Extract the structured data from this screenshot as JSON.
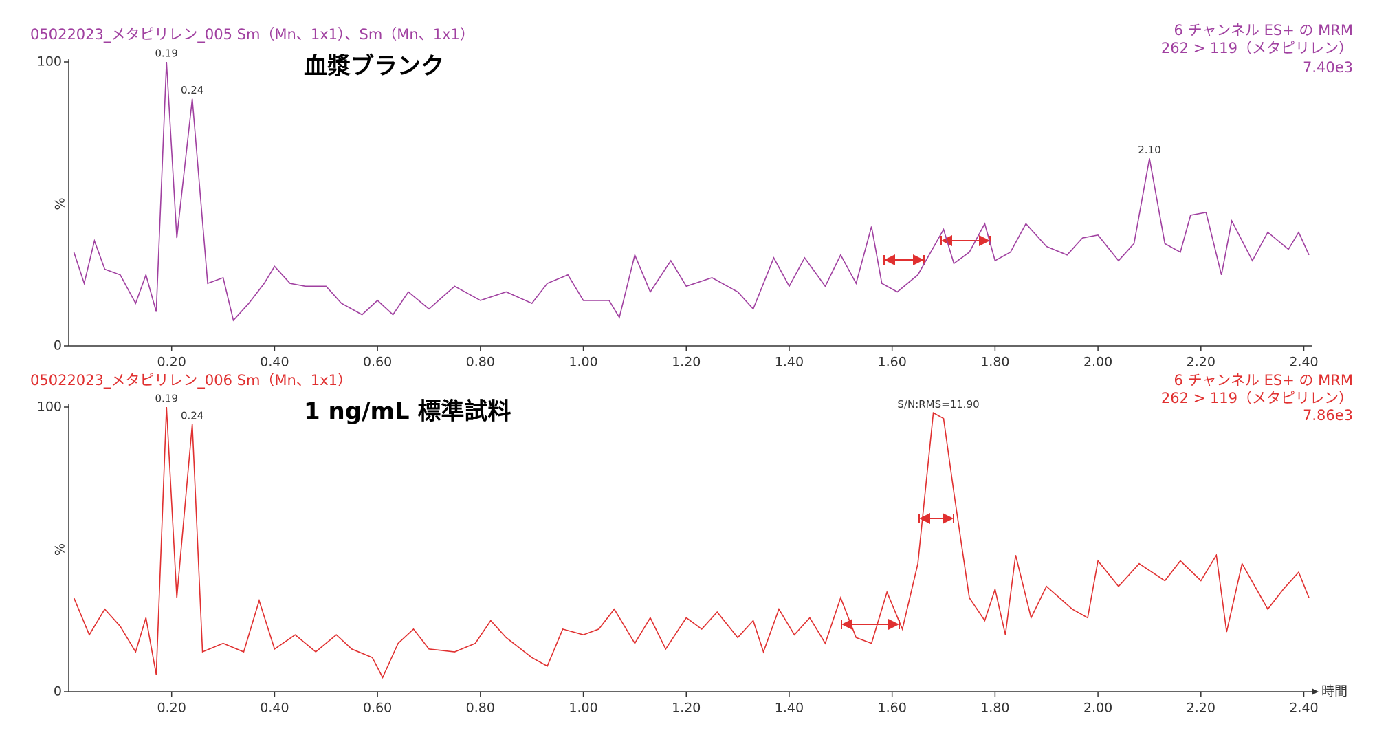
{
  "chart_data": [
    {
      "type": "line",
      "title": "05022023_メタピリレン_005 Sm（Mn、1x1）、Sm（Mn、1x1）",
      "header_right": [
        "6 チャンネル ES+ の MRM",
        "262 > 119（メタピリレン）",
        "7.40e3"
      ],
      "label": "血漿ブランク",
      "y_label": "%",
      "color": "#a040a0",
      "x": [
        0.01,
        0.03,
        0.05,
        0.07,
        0.1,
        0.13,
        0.15,
        0.17,
        0.19,
        0.21,
        0.24,
        0.27,
        0.3,
        0.32,
        0.35,
        0.38,
        0.4,
        0.43,
        0.46,
        0.5,
        0.53,
        0.57,
        0.6,
        0.63,
        0.66,
        0.7,
        0.75,
        0.8,
        0.85,
        0.9,
        0.93,
        0.97,
        1.0,
        1.05,
        1.07,
        1.1,
        1.13,
        1.17,
        1.2,
        1.25,
        1.3,
        1.33,
        1.37,
        1.4,
        1.43,
        1.47,
        1.5,
        1.53,
        1.56,
        1.58,
        1.61,
        1.65,
        1.7,
        1.72,
        1.75,
        1.78,
        1.8,
        1.83,
        1.86,
        1.9,
        1.94,
        1.97,
        2.0,
        2.04,
        2.07,
        2.1,
        2.13,
        2.16,
        2.18,
        2.21,
        2.24,
        2.26,
        2.3,
        2.33,
        2.37,
        2.39,
        2.41
      ],
      "values": [
        33,
        22,
        37,
        27,
        25,
        15,
        25,
        12,
        100,
        38,
        87,
        22,
        24,
        9,
        15,
        22,
        28,
        22,
        21,
        21,
        15,
        11,
        16,
        11,
        19,
        13,
        21,
        16,
        19,
        15,
        22,
        25,
        16,
        16,
        10,
        32,
        19,
        30,
        21,
        24,
        19,
        13,
        31,
        21,
        31,
        21,
        32,
        22,
        42,
        22,
        19,
        25,
        41,
        29,
        33,
        43,
        30,
        33,
        43,
        35,
        32,
        38,
        39,
        30,
        36,
        66,
        36,
        33,
        46,
        47,
        25,
        44,
        30,
        40,
        34,
        40,
        32
      ],
      "xlim": [
        0,
        2.41
      ],
      "ylim": [
        0,
        100
      ],
      "xticks": [
        {
          "value": 0.2,
          "label": "0.20"
        },
        {
          "value": 0.4,
          "label": "0.40"
        },
        {
          "value": 0.6,
          "label": "0.60"
        },
        {
          "value": 0.8,
          "label": "0.80"
        },
        {
          "value": 1.0,
          "label": "1.00"
        },
        {
          "value": 1.2,
          "label": "1.20"
        },
        {
          "value": 1.4,
          "label": "1.40"
        },
        {
          "value": 1.6,
          "label": "1.60"
        },
        {
          "value": 1.8,
          "label": "1.80"
        },
        {
          "value": 2.0,
          "label": "2.00"
        },
        {
          "value": 2.2,
          "label": "2.20"
        },
        {
          "value": 2.4,
          "label": "2.40"
        }
      ],
      "yticks": [
        0,
        100
      ],
      "annotations": [
        {
          "text": "0.19",
          "x": 0.19
        },
        {
          "text": "0.24",
          "x": 0.24
        },
        {
          "text": "2.10",
          "x": 2.1
        }
      ]
    },
    {
      "type": "line",
      "title": "05022023_メタピリレン_006 Sm（Mn、1x1）",
      "header_right": [
        "6 チャンネル ES+ の MRM",
        "262 > 119（メタピリレン）",
        "7.86e3"
      ],
      "label": "1 ng/mL 標準試料",
      "y_label": "%",
      "x_label": "時間",
      "color": "#e03030",
      "x": [
        0.01,
        0.04,
        0.07,
        0.1,
        0.13,
        0.15,
        0.17,
        0.19,
        0.21,
        0.24,
        0.26,
        0.3,
        0.34,
        0.37,
        0.4,
        0.44,
        0.48,
        0.52,
        0.55,
        0.59,
        0.61,
        0.64,
        0.67,
        0.7,
        0.75,
        0.79,
        0.82,
        0.85,
        0.9,
        0.93,
        0.96,
        1.0,
        1.03,
        1.06,
        1.1,
        1.13,
        1.16,
        1.2,
        1.23,
        1.26,
        1.3,
        1.33,
        1.35,
        1.38,
        1.41,
        1.44,
        1.47,
        1.5,
        1.53,
        1.56,
        1.59,
        1.62,
        1.65,
        1.68,
        1.7,
        1.72,
        1.75,
        1.78,
        1.8,
        1.82,
        1.84,
        1.87,
        1.9,
        1.95,
        1.98,
        2.0,
        2.04,
        2.08,
        2.13,
        2.16,
        2.2,
        2.23,
        2.25,
        2.28,
        2.33,
        2.36,
        2.39,
        2.41
      ],
      "values": [
        33,
        20,
        29,
        23,
        14,
        26,
        6,
        100,
        33,
        94,
        14,
        17,
        14,
        32,
        15,
        20,
        14,
        20,
        15,
        12,
        5,
        17,
        22,
        15,
        14,
        17,
        25,
        19,
        12,
        9,
        22,
        20,
        22,
        29,
        17,
        26,
        15,
        26,
        22,
        28,
        19,
        25,
        14,
        29,
        20,
        26,
        17,
        33,
        19,
        17,
        35,
        22,
        45,
        98,
        96,
        70,
        33,
        25,
        36,
        20,
        48,
        26,
        37,
        29,
        26,
        46,
        37,
        45,
        39,
        46,
        39,
        48,
        21,
        45,
        29,
        36,
        42,
        33
      ],
      "xlim": [
        0,
        2.41
      ],
      "ylim": [
        0,
        100
      ],
      "xticks": [
        {
          "value": 0.2,
          "label": "0.20"
        },
        {
          "value": 0.4,
          "label": "0.40"
        },
        {
          "value": 0.6,
          "label": "0.60"
        },
        {
          "value": 0.8,
          "label": "0.80"
        },
        {
          "value": 1.0,
          "label": "1.00"
        },
        {
          "value": 1.2,
          "label": "1.20"
        },
        {
          "value": 1.4,
          "label": "1.40"
        },
        {
          "value": 1.6,
          "label": "1.60"
        },
        {
          "value": 1.8,
          "label": "1.80"
        },
        {
          "value": 2.0,
          "label": "2.00"
        },
        {
          "value": 2.2,
          "label": "2.20"
        },
        {
          "value": 2.4,
          "label": "2.40"
        }
      ],
      "yticks": [
        0,
        100
      ],
      "annotations": [
        {
          "text": "0.19",
          "x": 0.19
        },
        {
          "text": "0.24",
          "x": 0.24
        },
        {
          "text": "S/N:RMS=11.90",
          "x": 1.69
        }
      ]
    }
  ]
}
